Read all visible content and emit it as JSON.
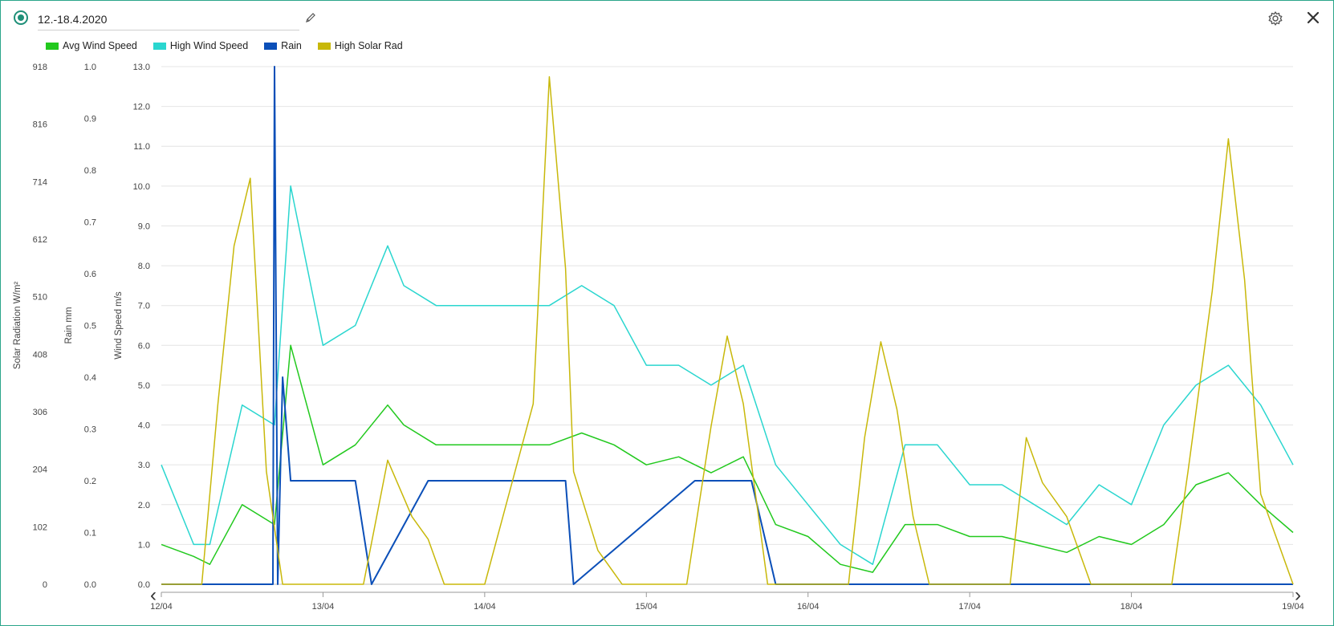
{
  "header": {
    "date_range": "12.-18.4.2020",
    "icons": [
      "status-dot-icon",
      "pencil-icon",
      "gear-icon",
      "close-icon"
    ]
  },
  "legend": [
    {
      "label": "Avg Wind Speed",
      "color": "#22c91e"
    },
    {
      "label": "High Wind Speed",
      "color": "#2ad6cf"
    },
    {
      "label": "Rain",
      "color": "#0b4fb8"
    },
    {
      "label": "High Solar Rad",
      "color": "#c8b80a"
    }
  ],
  "nav": {
    "prev": "‹",
    "next": "›"
  },
  "chart_data": {
    "type": "line",
    "axes": {
      "solar": {
        "title": "Solar Radiation W/m²",
        "ticks": [
          "0",
          "102",
          "204",
          "306",
          "408",
          "510",
          "612",
          "714",
          "816",
          "918"
        ],
        "range": [
          0,
          918
        ]
      },
      "rain": {
        "title": "Rain mm",
        "ticks": [
          "0.0",
          "0.1",
          "0.2",
          "0.3",
          "0.4",
          "0.5",
          "0.6",
          "0.7",
          "0.8",
          "0.9",
          "1.0"
        ],
        "range": [
          0,
          1.0
        ]
      },
      "wind": {
        "title": "Wind Speed m/s",
        "ticks": [
          "0.0",
          "1.0",
          "2.0",
          "3.0",
          "4.0",
          "5.0",
          "6.0",
          "7.0",
          "8.0",
          "9.0",
          "10.0",
          "11.0",
          "12.0",
          "13.0"
        ],
        "range": [
          0,
          13
        ]
      }
    },
    "x_ticks": [
      "12/04",
      "13/04",
      "14/04",
      "15/04",
      "16/04",
      "17/04",
      "18/04",
      "19/04"
    ],
    "x_range_days": [
      0,
      7
    ],
    "grid": true,
    "series": [
      {
        "name": "Avg Wind Speed",
        "axis": "wind",
        "color": "#22c91e",
        "x": [
          0,
          0.2,
          0.3,
          0.5,
          0.7,
          0.8,
          1.0,
          1.2,
          1.4,
          1.5,
          1.7,
          2.0,
          2.2,
          2.4,
          2.6,
          2.8,
          3.0,
          3.2,
          3.4,
          3.6,
          3.8,
          4.0,
          4.2,
          4.4,
          4.6,
          4.8,
          5.0,
          5.2,
          5.4,
          5.6,
          5.8,
          6.0,
          6.2,
          6.4,
          6.6,
          6.8,
          7.0
        ],
        "y": [
          1.0,
          0.7,
          0.5,
          2.0,
          1.5,
          6.0,
          3.0,
          3.5,
          4.5,
          4.0,
          3.5,
          3.5,
          3.5,
          3.5,
          3.8,
          3.5,
          3.0,
          3.2,
          2.8,
          3.2,
          1.5,
          1.2,
          0.5,
          0.3,
          1.5,
          1.5,
          1.2,
          1.2,
          1.0,
          0.8,
          1.2,
          1.0,
          1.5,
          2.5,
          2.8,
          2.0,
          1.3
        ]
      },
      {
        "name": "High Wind Speed",
        "axis": "wind",
        "color": "#2ad6cf",
        "x": [
          0,
          0.2,
          0.3,
          0.5,
          0.7,
          0.8,
          1.0,
          1.2,
          1.4,
          1.5,
          1.7,
          2.0,
          2.2,
          2.4,
          2.6,
          2.8,
          3.0,
          3.2,
          3.4,
          3.6,
          3.8,
          4.0,
          4.2,
          4.4,
          4.6,
          4.8,
          5.0,
          5.2,
          5.4,
          5.6,
          5.8,
          6.0,
          6.2,
          6.4,
          6.6,
          6.8,
          7.0
        ],
        "y": [
          3.0,
          1.0,
          1.0,
          4.5,
          4.0,
          10.0,
          6.0,
          6.5,
          8.5,
          7.5,
          7.0,
          7.0,
          7.0,
          7.0,
          7.5,
          7.0,
          5.5,
          5.5,
          5.0,
          5.5,
          3.0,
          2.0,
          1.0,
          0.5,
          3.5,
          3.5,
          2.5,
          2.5,
          2.0,
          1.5,
          2.5,
          2.0,
          4.0,
          5.0,
          5.5,
          4.5,
          3.0
        ]
      },
      {
        "name": "Rain",
        "axis": "rain",
        "color": "#0b4fb8",
        "x": [
          0,
          0.69,
          0.7,
          0.72,
          0.75,
          0.8,
          1.2,
          1.3,
          1.65,
          2.3,
          2.5,
          2.55,
          3.3,
          3.6,
          3.65,
          3.8,
          4.0,
          7.0
        ],
        "y": [
          0,
          0,
          1.0,
          0.0,
          0.4,
          0.2,
          0.2,
          0,
          0.2,
          0.2,
          0.2,
          0,
          0.2,
          0.2,
          0.2,
          0,
          0,
          0
        ]
      },
      {
        "name": "High Solar Rad",
        "axis": "solar",
        "color": "#c8b80a",
        "x": [
          0,
          0.25,
          0.35,
          0.45,
          0.55,
          0.65,
          0.75,
          1.25,
          1.4,
          1.55,
          1.65,
          1.75,
          1.9,
          2.0,
          2.3,
          2.4,
          2.5,
          2.55,
          2.7,
          2.85,
          3.25,
          3.4,
          3.5,
          3.6,
          3.75,
          4.25,
          4.35,
          4.45,
          4.55,
          4.65,
          4.75,
          5.25,
          5.35,
          5.45,
          5.6,
          5.75,
          6.25,
          6.35,
          6.5,
          6.6,
          6.7,
          6.8,
          7.0
        ],
        "y": [
          0,
          0,
          320,
          600,
          720,
          200,
          0,
          0,
          220,
          120,
          80,
          0,
          0,
          0,
          320,
          900,
          560,
          200,
          60,
          0,
          0,
          280,
          440,
          320,
          0,
          0,
          260,
          430,
          310,
          120,
          0,
          0,
          260,
          180,
          120,
          0,
          0,
          200,
          520,
          790,
          540,
          160,
          0
        ]
      }
    ]
  }
}
